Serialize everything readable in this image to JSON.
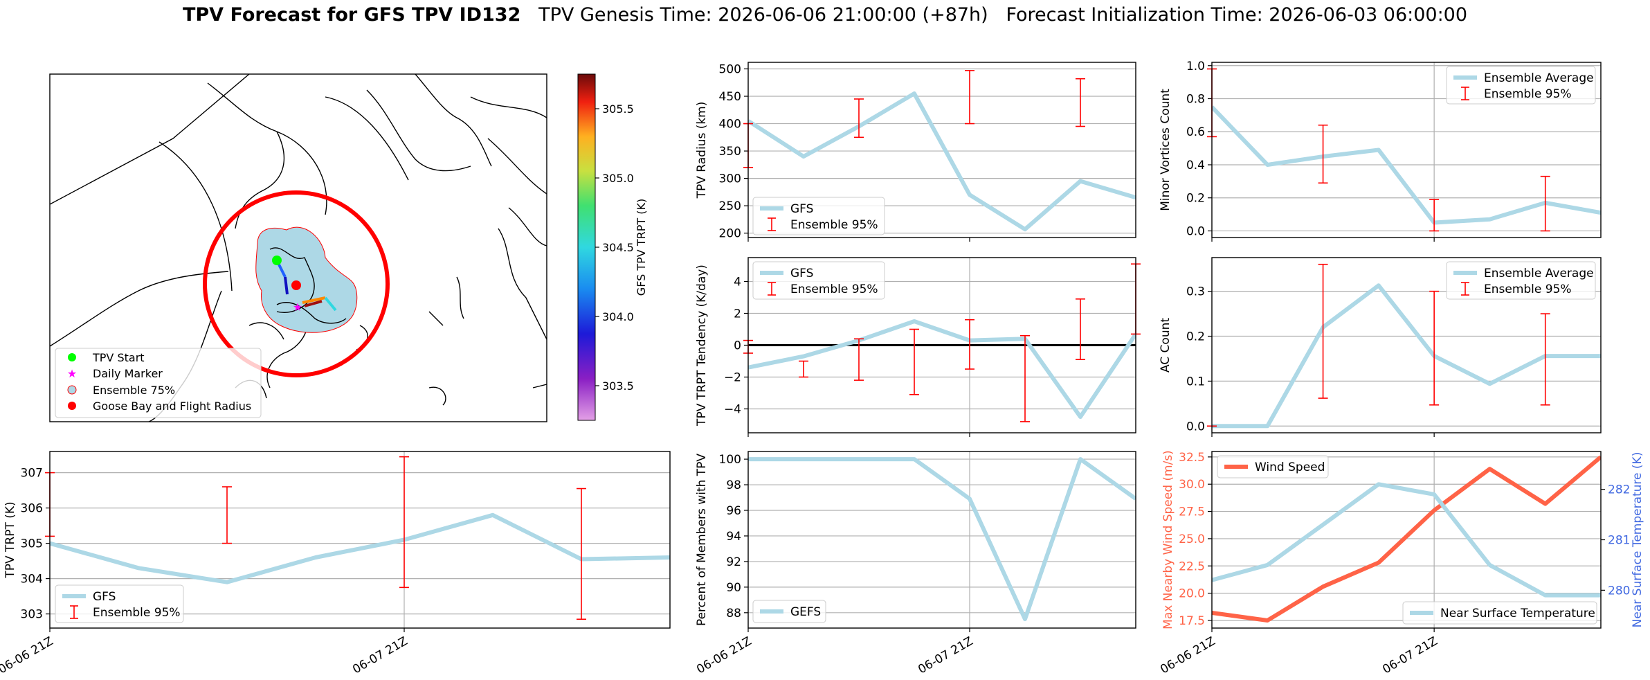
{
  "title": {
    "main": "TPV Forecast for GFS TPV ID132",
    "genesis": "TPV Genesis Time: 2026-06-06 21:00:00 (+87h)",
    "init": "Forecast Initialization Time: 2026-06-03 06:00:00"
  },
  "colors": {
    "gfs_line": "#add8e6",
    "errorbar": "#ff0000",
    "wind": "#ff6347",
    "temp_axis": "#4169e1",
    "grid": "#b0b0b0"
  },
  "map": {
    "colorbar_label": "GFS TPV TRPT (K)",
    "colorbar_ticks": [
      "303.5",
      "304.0",
      "304.5",
      "305.0",
      "305.5"
    ],
    "colorbar_range": [
      303.25,
      305.75
    ],
    "legend": [
      "TPV Start",
      "Daily Marker",
      "Ensemble 75%",
      "Goose Bay and Flight Radius"
    ]
  },
  "chart_data": [
    {
      "id": "trpt",
      "type": "line",
      "ylabel": "TPV TRPT (K)",
      "ylim": [
        302.6,
        307.6
      ],
      "yticks": [
        "303",
        "304",
        "305",
        "306",
        "307"
      ],
      "x_ticks": [
        "06-06 21Z",
        "06-07 21Z"
      ],
      "series": [
        {
          "name": "GFS",
          "x": [
            0,
            6,
            12,
            18,
            24,
            30,
            36,
            42
          ],
          "values": [
            305.0,
            304.3,
            303.9,
            304.6,
            305.1,
            305.8,
            304.55,
            304.6
          ]
        }
      ],
      "errorbars": {
        "name": "Ensemble 95%",
        "x": [
          0,
          12,
          24,
          36
        ],
        "low": [
          305.2,
          305.0,
          303.75,
          302.85
        ],
        "high": [
          307.0,
          306.6,
          307.45,
          306.55
        ]
      }
    },
    {
      "id": "radius",
      "type": "line",
      "ylabel": "TPV Radius (km)",
      "ylim": [
        192,
        512
      ],
      "yticks": [
        "200",
        "250",
        "300",
        "350",
        "400",
        "450",
        "500"
      ],
      "series": [
        {
          "name": "GFS",
          "x": [
            0,
            6,
            12,
            18,
            24,
            30,
            36,
            42
          ],
          "values": [
            405,
            340,
            395,
            455,
            270,
            207,
            295,
            265
          ]
        }
      ],
      "errorbars": {
        "name": "Ensemble 95%",
        "x": [
          0,
          12,
          24,
          36
        ],
        "low": [
          320,
          375,
          400,
          395
        ],
        "high": [
          400,
          445,
          497,
          482
        ]
      }
    },
    {
      "id": "tendency",
      "type": "line",
      "ylabel": "TPV TRPT Tendency (K/day)",
      "ylim": [
        -5.5,
        5.5
      ],
      "yticks": [
        "−4",
        "−2",
        "0",
        "2",
        "4"
      ],
      "series": [
        {
          "name": "GFS",
          "x": [
            0,
            6,
            12,
            18,
            24,
            30,
            36,
            42
          ],
          "values": [
            -1.4,
            -0.7,
            0.3,
            1.5,
            0.3,
            0.4,
            -4.5,
            0.7
          ]
        }
      ],
      "errorbars": {
        "name": "Ensemble 95%",
        "x": [
          0,
          6,
          12,
          18,
          24,
          30,
          36,
          42
        ],
        "low": [
          -0.5,
          -2.0,
          -2.2,
          -3.1,
          -1.5,
          -4.8,
          -0.9,
          0.7
        ],
        "high": [
          0.3,
          -1.0,
          0.4,
          1.0,
          1.6,
          0.6,
          2.9,
          5.1
        ]
      }
    },
    {
      "id": "members",
      "type": "line",
      "ylabel": "Percent of Members with TPV",
      "ylim": [
        86.8,
        100.6
      ],
      "yticks": [
        "88",
        "90",
        "92",
        "94",
        "96",
        "98",
        "100"
      ],
      "series": [
        {
          "name": "GEFS",
          "x": [
            0,
            6,
            12,
            18,
            24,
            30,
            36,
            42
          ],
          "values": [
            100,
            100,
            100,
            100,
            96.9,
            87.5,
            100,
            96.9
          ]
        }
      ]
    },
    {
      "id": "minor",
      "type": "line",
      "ylabel": "Minor Vortices Count",
      "ylim": [
        -0.04,
        1.02
      ],
      "yticks": [
        "0.0",
        "0.2",
        "0.4",
        "0.6",
        "0.8",
        "1.0"
      ],
      "series": [
        {
          "name": "Ensemble Average",
          "x": [
            0,
            6,
            12,
            18,
            24,
            30,
            36,
            42
          ],
          "values": [
            0.75,
            0.4,
            0.45,
            0.49,
            0.05,
            0.07,
            0.17,
            0.11
          ]
        }
      ],
      "errorbars": {
        "name": "Ensemble 95%",
        "x": [
          0,
          12,
          24,
          36
        ],
        "low": [
          0.57,
          0.29,
          0.0,
          0.0
        ],
        "high": [
          0.98,
          0.64,
          0.19,
          0.33
        ]
      }
    },
    {
      "id": "ac",
      "type": "line",
      "ylabel": "AC Count",
      "ylim": [
        -0.015,
        0.375
      ],
      "yticks": [
        "0.0",
        "0.1",
        "0.2",
        "0.3"
      ],
      "series": [
        {
          "name": "Ensemble Average",
          "x": [
            0,
            6,
            12,
            18,
            24,
            30,
            36,
            42
          ],
          "values": [
            0,
            0,
            0.22,
            0.313,
            0.156,
            0.094,
            0.156,
            0.156
          ]
        }
      ],
      "errorbars": {
        "name": "Ensemble 95%",
        "x": [
          0,
          12,
          24,
          36
        ],
        "low": [
          0,
          0.062,
          0.047,
          0.047
        ],
        "high": [
          0,
          0.36,
          0.3,
          0.25
        ]
      }
    },
    {
      "id": "wind",
      "type": "line",
      "ylabel": "Max Nearby Wind Speed (m/s)",
      "ylabel_right": "Near Surface Temperature (K)",
      "ylim": [
        16.8,
        33.0
      ],
      "yticks": [
        "17.5",
        "20.0",
        "22.5",
        "25.0",
        "27.5",
        "30.0",
        "32.5"
      ],
      "ylim_right": [
        279.25,
        282.75
      ],
      "yticks_right": [
        "280",
        "281",
        "282"
      ],
      "series": [
        {
          "name": "Wind Speed",
          "x": [
            0,
            6,
            12,
            18,
            24,
            30,
            36,
            42
          ],
          "values": [
            18.2,
            17.5,
            20.6,
            22.8,
            27.6,
            31.4,
            28.2,
            32.5
          ]
        },
        {
          "name": "Near Surface Temperature",
          "x": [
            0,
            6,
            12,
            18,
            24,
            30,
            36,
            42
          ],
          "values": [
            280.2,
            280.5,
            281.3,
            282.1,
            281.9,
            280.5,
            279.9,
            279.9
          ]
        }
      ]
    }
  ]
}
